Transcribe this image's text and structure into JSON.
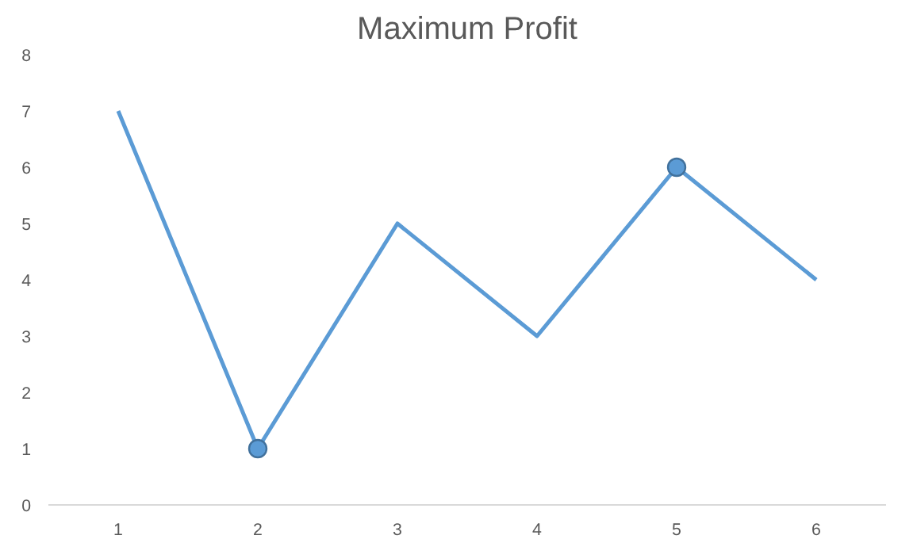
{
  "chart_data": {
    "type": "line",
    "title": "Maximum Profit",
    "categories": [
      "1",
      "2",
      "3",
      "4",
      "5",
      "6"
    ],
    "series": [
      {
        "color": "#5b9bd5",
        "values": [
          7,
          1,
          5,
          3,
          6,
          4
        ],
        "marker": "none"
      },
      {
        "type": "scatter",
        "color": "#5b9bd5",
        "x": [
          "2",
          "5"
        ],
        "values": [
          1,
          6
        ],
        "marker": "circle"
      }
    ],
    "ylim": [
      0,
      8
    ],
    "yticks": [
      0,
      1,
      2,
      3,
      4,
      5,
      6,
      7,
      8
    ]
  }
}
